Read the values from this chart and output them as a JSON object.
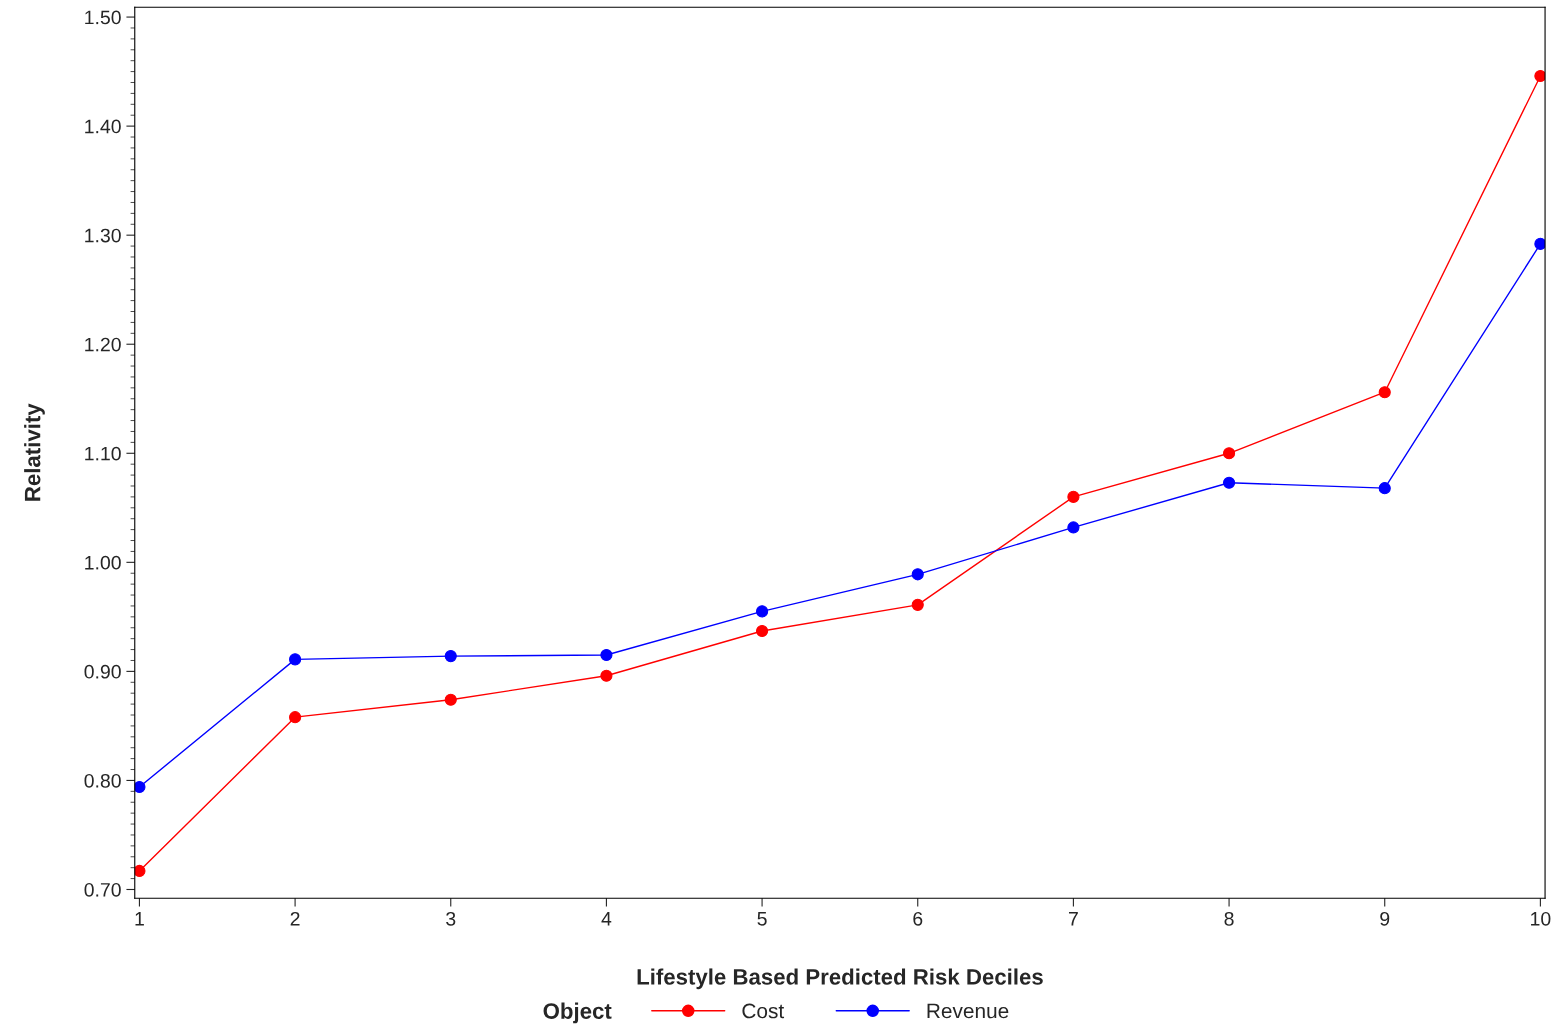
{
  "chart_data": {
    "type": "line",
    "xlabel": "Lifestyle Based Predicted Risk Deciles",
    "ylabel": "Relativity",
    "legend_title": "Object",
    "x": [
      1,
      2,
      3,
      4,
      5,
      6,
      7,
      8,
      9,
      10
    ],
    "series": [
      {
        "name": "Cost",
        "color": "#ff0000",
        "values": [
          0.717,
          0.858,
          0.874,
          0.896,
          0.937,
          0.961,
          1.06,
          1.1,
          1.156,
          1.446
        ]
      },
      {
        "name": "Revenue",
        "color": "#0000ff",
        "values": [
          0.794,
          0.911,
          0.914,
          0.915,
          0.955,
          0.989,
          1.032,
          1.073,
          1.068,
          1.292
        ]
      }
    ],
    "xlim": [
      0.97,
      10.03
    ],
    "xticks": [
      1,
      2,
      3,
      4,
      5,
      6,
      7,
      8,
      9,
      10
    ],
    "ylim": [
      0.692,
      1.509
    ],
    "yticks": [
      {
        "value": 0.7,
        "label": "0.70"
      },
      {
        "value": 0.8,
        "label": "0.80"
      },
      {
        "value": 0.9,
        "label": "0.90"
      },
      {
        "value": 1.0,
        "label": "1.00"
      },
      {
        "value": 1.1,
        "label": "1.10"
      },
      {
        "value": 1.2,
        "label": "1.20"
      },
      {
        "value": 1.3,
        "label": "1.30"
      },
      {
        "value": 1.4,
        "label": "1.40"
      },
      {
        "value": 1.5,
        "label": "1.50"
      }
    ],
    "grid": false,
    "legend": "bottom",
    "marker": "circle",
    "line_style": "solid"
  }
}
